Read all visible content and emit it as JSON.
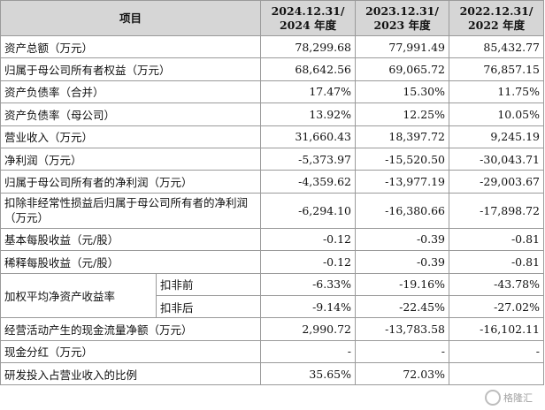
{
  "header": {
    "item": "项目",
    "col1_line1": "2024.12.31/",
    "col1_line2": "2024 年度",
    "col2_line1": "2023.12.31/",
    "col2_line2": "2023 年度",
    "col3_line1": "2022.12.31/",
    "col3_line2": "2022 年度"
  },
  "rows": [
    {
      "label": "资产总额（万元）",
      "values": [
        "78,299.68",
        "77,991.49",
        "85,432.77"
      ]
    },
    {
      "label": "归属于母公司所有者权益（万元）",
      "values": [
        "68,642.56",
        "69,065.72",
        "76,857.15"
      ]
    },
    {
      "label": "资产负债率（合并）",
      "values": [
        "17.47%",
        "15.30%",
        "11.75%"
      ]
    },
    {
      "label": "资产负债率（母公司）",
      "values": [
        "13.92%",
        "12.25%",
        "10.05%"
      ]
    },
    {
      "label": "营业收入（万元）",
      "values": [
        "31,660.43",
        "18,397.72",
        "9,245.19"
      ]
    },
    {
      "label": "净利润（万元）",
      "values": [
        "-5,373.97",
        "-15,520.50",
        "-30,043.71"
      ]
    },
    {
      "label": "归属于母公司所有者的净利润（万元）",
      "values": [
        "-4,359.62",
        "-13,977.19",
        "-29,003.67"
      ]
    },
    {
      "label": "扣除非经常性损益后归属于母公司所有者的净利润（万元）",
      "values": [
        "-6,294.10",
        "-16,380.66",
        "-17,898.72"
      ]
    },
    {
      "label": "基本每股收益（元/股）",
      "values": [
        "-0.12",
        "-0.39",
        "-0.81"
      ]
    },
    {
      "label": "稀释每股收益（元/股）",
      "values": [
        "-0.12",
        "-0.39",
        "-0.81"
      ]
    },
    {
      "label": "经营活动产生的现金流量净额（万元）",
      "values": [
        "2,990.72",
        "-13,783.58",
        "-16,102.11"
      ]
    },
    {
      "label": "现金分红（万元）",
      "values": [
        "-",
        "-",
        "-"
      ]
    },
    {
      "label": "研发投入占营业收入的比例",
      "values": [
        "35.65%",
        "72.03%",
        ""
      ]
    }
  ],
  "roe": {
    "label": "加权平均净资产收益率",
    "sub1": "扣非前",
    "sub1_values": [
      "-6.33%",
      "-19.16%",
      "-43.78%"
    ],
    "sub2": "扣非后",
    "sub2_values": [
      "-9.14%",
      "-22.45%",
      "-27.02%"
    ]
  },
  "watermark": {
    "text": "格隆汇",
    "icon": "brand-logo-icon"
  }
}
